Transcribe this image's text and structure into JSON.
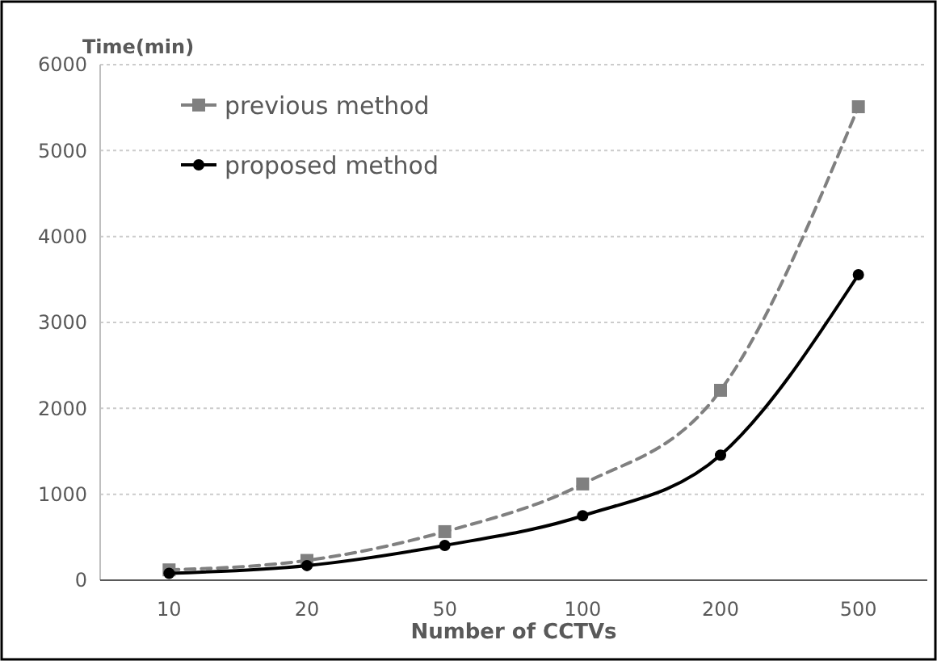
{
  "chart_data": {
    "type": "line",
    "xlabel": "Number of CCTVs",
    "ylabel": "Time(min)",
    "categories": [
      "10",
      "20",
      "50",
      "100",
      "200",
      "500"
    ],
    "series": [
      {
        "name": "previous method",
        "color": "#808080",
        "values": [
          120,
          230,
          565,
          1120,
          2210,
          5510
        ],
        "marker": "square",
        "line_style": "dashed"
      },
      {
        "name": "proposed method",
        "color": "#000000",
        "values": [
          80,
          170,
          405,
          750,
          1455,
          3555
        ],
        "marker": "circle",
        "line_style": "solid"
      }
    ],
    "ylim": [
      0,
      6000
    ],
    "yticks": [
      0,
      1000,
      2000,
      3000,
      4000,
      5000,
      6000
    ],
    "grid": "y",
    "legend": "top left"
  }
}
